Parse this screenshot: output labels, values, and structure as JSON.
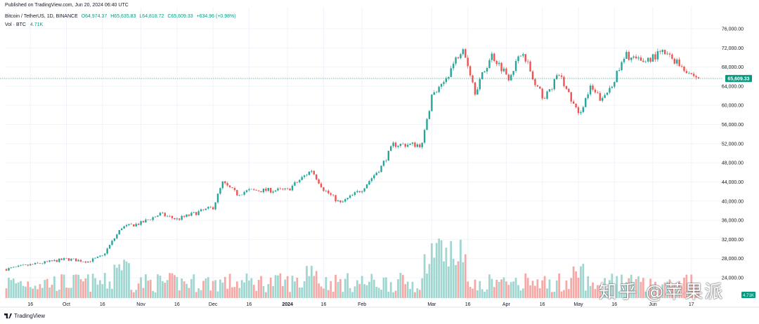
{
  "header": {
    "published": "Published on TradingView.com, Jun 20, 2024 06:40 UTC",
    "symbol": "Bitcoin / TetherUS, 1D, BINANCE",
    "open": "O64,974.37",
    "high": "H65,635.83",
    "low": "L64,818.72",
    "close": "C65,609.33",
    "change": "+634.96 (+0.98%)",
    "vol_label": "Vol · BTC",
    "vol_value": "4.71K"
  },
  "footer": {
    "brand": "TradingView"
  },
  "watermark": "知乎 @苹果派",
  "colors": {
    "up": "#26a69a",
    "down": "#ef5350",
    "vol_up": "#9fd6d0",
    "vol_down": "#f4a9a7",
    "last_price": "#089981",
    "grid": "#f0f3fa"
  },
  "chart_data": {
    "type": "candlestick",
    "title": "Bitcoin / TetherUS, 1D, BINANCE",
    "y_ticks": [
      "76,000.00",
      "72,000.00",
      "68,000.00",
      "64,000.00",
      "60,000.00",
      "56,000.00",
      "52,000.00",
      "48,000.00",
      "44,000.00",
      "40,000.00",
      "36,000.00",
      "32,000.00",
      "28,000.00",
      "24,000.00"
    ],
    "ylim": [
      22000,
      78000
    ],
    "last_price": 65609.33,
    "last_price_label": "65,609.33",
    "vol_badge": "4.71K",
    "x_labels": [
      {
        "date": "2023-09-16",
        "label": "16"
      },
      {
        "date": "2023-10-01",
        "label": "Oct"
      },
      {
        "date": "2023-10-16",
        "label": "16"
      },
      {
        "date": "2023-11-01",
        "label": "Nov"
      },
      {
        "date": "2023-11-16",
        "label": "16"
      },
      {
        "date": "2023-12-01",
        "label": "Dec"
      },
      {
        "date": "2023-12-16",
        "label": "16"
      },
      {
        "date": "2024-01-01",
        "label": "2024"
      },
      {
        "date": "2024-01-16",
        "label": "16"
      },
      {
        "date": "2024-02-01",
        "label": "Feb"
      },
      {
        "date": "2024-03-01",
        "label": "Mar"
      },
      {
        "date": "2024-03-16",
        "label": "16"
      },
      {
        "date": "2024-04-01",
        "label": "Apr"
      },
      {
        "date": "2024-04-16",
        "label": "16"
      },
      {
        "date": "2024-05-01",
        "label": "May"
      },
      {
        "date": "2024-05-16",
        "label": "16"
      },
      {
        "date": "2024-06-01",
        "label": "Jun"
      },
      {
        "date": "2024-06-17",
        "label": "17"
      }
    ],
    "start_date": "2023-09-06",
    "end_date": "2024-06-20",
    "close_anchors": [
      {
        "date": "2023-09-06",
        "close": 25800
      },
      {
        "date": "2023-09-15",
        "close": 26600
      },
      {
        "date": "2023-10-01",
        "close": 27900
      },
      {
        "date": "2023-10-10",
        "close": 27400
      },
      {
        "date": "2023-10-16",
        "close": 28500
      },
      {
        "date": "2023-10-24",
        "close": 34500
      },
      {
        "date": "2023-11-01",
        "close": 35400
      },
      {
        "date": "2023-11-09",
        "close": 37300
      },
      {
        "date": "2023-11-16",
        "close": 36200
      },
      {
        "date": "2023-12-01",
        "close": 38700
      },
      {
        "date": "2023-12-05",
        "close": 43800
      },
      {
        "date": "2023-12-11",
        "close": 41500
      },
      {
        "date": "2023-12-16",
        "close": 42200
      },
      {
        "date": "2024-01-01",
        "close": 42300
      },
      {
        "date": "2024-01-11",
        "close": 46500
      },
      {
        "date": "2024-01-16",
        "close": 42500
      },
      {
        "date": "2024-01-23",
        "close": 39500
      },
      {
        "date": "2024-02-01",
        "close": 42500
      },
      {
        "date": "2024-02-09",
        "close": 47200
      },
      {
        "date": "2024-02-14",
        "close": 51800
      },
      {
        "date": "2024-02-26",
        "close": 51800
      },
      {
        "date": "2024-03-01",
        "close": 62000
      },
      {
        "date": "2024-03-05",
        "close": 63800
      },
      {
        "date": "2024-03-14",
        "close": 72500
      },
      {
        "date": "2024-03-19",
        "close": 63000
      },
      {
        "date": "2024-03-26",
        "close": 70500
      },
      {
        "date": "2024-04-02",
        "close": 66000
      },
      {
        "date": "2024-04-08",
        "close": 71500
      },
      {
        "date": "2024-04-13",
        "close": 64000
      },
      {
        "date": "2024-04-17",
        "close": 61500
      },
      {
        "date": "2024-04-23",
        "close": 66500
      },
      {
        "date": "2024-05-01",
        "close": 58000
      },
      {
        "date": "2024-05-06",
        "close": 63500
      },
      {
        "date": "2024-05-11",
        "close": 61000
      },
      {
        "date": "2024-05-16",
        "close": 65500
      },
      {
        "date": "2024-05-21",
        "close": 70500
      },
      {
        "date": "2024-05-27",
        "close": 69000
      },
      {
        "date": "2024-06-05",
        "close": 71000
      },
      {
        "date": "2024-06-10",
        "close": 69500
      },
      {
        "date": "2024-06-17",
        "close": 66500
      },
      {
        "date": "2024-06-20",
        "close": 65609
      }
    ],
    "volume_estimate_k": "random-visual",
    "xlabel": "",
    "ylabel": ""
  }
}
